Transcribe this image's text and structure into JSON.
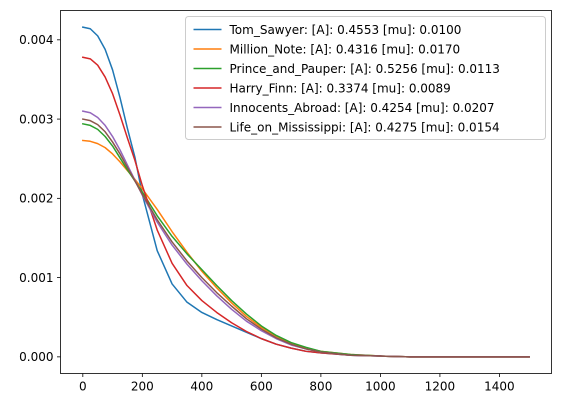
{
  "chart_data": {
    "type": "line",
    "title": "",
    "xlabel": "",
    "ylabel": "",
    "xlim": [
      -75,
      1575
    ],
    "ylim": [
      -0.00021,
      0.00437
    ],
    "xticks": [
      0,
      200,
      400,
      600,
      800,
      1000,
      1200,
      1400
    ],
    "xtick_labels": [
      "0",
      "200",
      "400",
      "600",
      "800",
      "1000",
      "1200",
      "1400"
    ],
    "yticks": [
      0.0,
      0.001,
      0.002,
      0.003,
      0.004
    ],
    "ytick_labels": [
      "0.000",
      "0.001",
      "0.002",
      "0.003",
      "0.004"
    ],
    "grid": false,
    "legend_position": "top-right",
    "x": [
      0,
      25,
      50,
      75,
      100,
      125,
      150,
      175,
      200,
      250,
      300,
      350,
      400,
      450,
      500,
      550,
      600,
      650,
      700,
      750,
      800,
      900,
      1000,
      1100,
      1200,
      1300,
      1400,
      1500
    ],
    "series": [
      {
        "name": "Tom_Sawyer: [A]: 0.4553 [mu]: 0.0100",
        "color": "#1f77b4",
        "values": [
          0.00416,
          0.00414,
          0.00405,
          0.00388,
          0.00362,
          0.00327,
          0.00288,
          0.00252,
          0.00205,
          0.00134,
          0.00092,
          0.00069,
          0.00056,
          0.00047,
          0.00039,
          0.00031,
          0.00023,
          0.00016,
          0.00011,
          7e-05,
          5e-05,
          2e-05,
          1e-05,
          0.0,
          0.0,
          0.0,
          0.0,
          0.0
        ]
      },
      {
        "name": "Million_Note: [A]: 0.4316 [mu]: 0.0170",
        "color": "#ff7f0e",
        "values": [
          0.00273,
          0.00272,
          0.00269,
          0.00264,
          0.00256,
          0.00246,
          0.00235,
          0.00224,
          0.00212,
          0.00186,
          0.00158,
          0.00132,
          0.00108,
          0.00087,
          0.00068,
          0.00051,
          0.00037,
          0.00026,
          0.00017,
          0.00011,
          7e-05,
          3e-05,
          1e-05,
          0.0,
          0.0,
          0.0,
          0.0,
          0.0
        ]
      },
      {
        "name": "Prince_and_Pauper: [A]: 0.5256 [mu]: 0.0113",
        "color": "#2ca02c",
        "values": [
          0.00294,
          0.00292,
          0.00287,
          0.00278,
          0.00266,
          0.00251,
          0.00236,
          0.00222,
          0.00208,
          0.00178,
          0.00152,
          0.0013,
          0.0011,
          0.0009,
          0.00071,
          0.00054,
          0.00039,
          0.00027,
          0.00018,
          0.00012,
          7e-05,
          3e-05,
          1e-05,
          0.0,
          0.0,
          0.0,
          0.0,
          0.0
        ]
      },
      {
        "name": "Harry_Finn: [A]: 0.3374 [mu]: 0.0089",
        "color": "#d62728",
        "values": [
          0.00378,
          0.00376,
          0.00368,
          0.00353,
          0.00332,
          0.00305,
          0.00276,
          0.00248,
          0.00216,
          0.0016,
          0.00118,
          0.0009,
          0.00071,
          0.00056,
          0.00043,
          0.00032,
          0.00023,
          0.00016,
          0.00011,
          7e-05,
          5e-05,
          2e-05,
          1e-05,
          0.0,
          0.0,
          0.0,
          0.0,
          0.0
        ]
      },
      {
        "name": "Innocents_Abroad: [A]: 0.4254 [mu]: 0.0207",
        "color": "#9467bd",
        "values": [
          0.0031,
          0.00308,
          0.00302,
          0.00292,
          0.00278,
          0.00261,
          0.00242,
          0.00223,
          0.00204,
          0.0017,
          0.00141,
          0.00117,
          0.00096,
          0.00077,
          0.0006,
          0.00045,
          0.00033,
          0.00023,
          0.00015,
          0.0001,
          6e-05,
          2e-05,
          1e-05,
          0.0,
          0.0,
          0.0,
          0.0,
          0.0
        ]
      },
      {
        "name": "Life_on_Mississippi: [A]: 0.4275 [mu]: 0.0154",
        "color": "#8c564b",
        "values": [
          0.003,
          0.00298,
          0.00293,
          0.00284,
          0.00271,
          0.00256,
          0.00239,
          0.00222,
          0.00205,
          0.00173,
          0.00145,
          0.00121,
          0.001,
          0.00081,
          0.00064,
          0.00048,
          0.00035,
          0.00024,
          0.00016,
          0.0001,
          6e-05,
          2e-05,
          1e-05,
          0.0,
          0.0,
          0.0,
          0.0,
          0.0
        ]
      }
    ]
  }
}
